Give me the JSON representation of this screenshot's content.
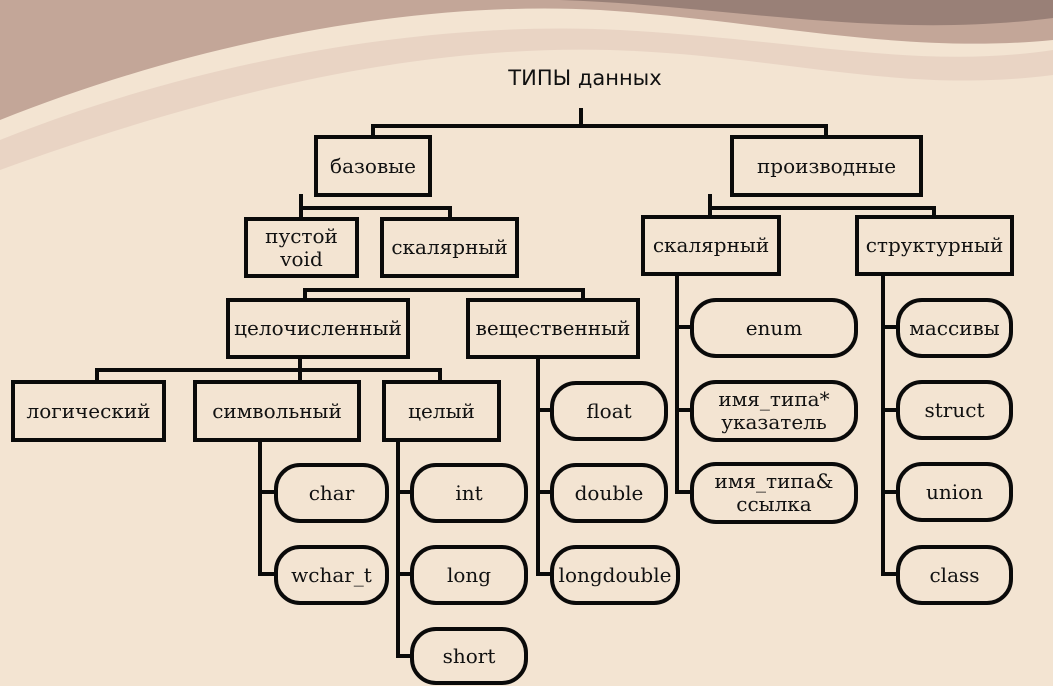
{
  "title": "ТИПЫ данных",
  "colors": {
    "background": "#f3e4d2",
    "stroke": "#0a0a0a",
    "swoosh": "#b98f84"
  },
  "nodes": {
    "basic": "базовые",
    "derived": "производные",
    "void": "пустой\nvoid",
    "scalar_basic": "скалярный",
    "integer": "целочисленный",
    "real": "вещественный",
    "logical": "логический",
    "symbolic": "символьный",
    "whole": "целый",
    "char": "char",
    "wchar_t": "wchar_t",
    "int": "int",
    "long": "long",
    "short": "short",
    "float": "float",
    "double": "double",
    "longdouble": "longdouble",
    "scalar_derived": "скалярный",
    "structural": "структурный",
    "enum": "enum",
    "pointer": "имя_типа*\nуказатель",
    "reference": "имя_типа&\nссылка",
    "arrays": "массивы",
    "struct": "struct",
    "union": "union",
    "class": "class"
  }
}
